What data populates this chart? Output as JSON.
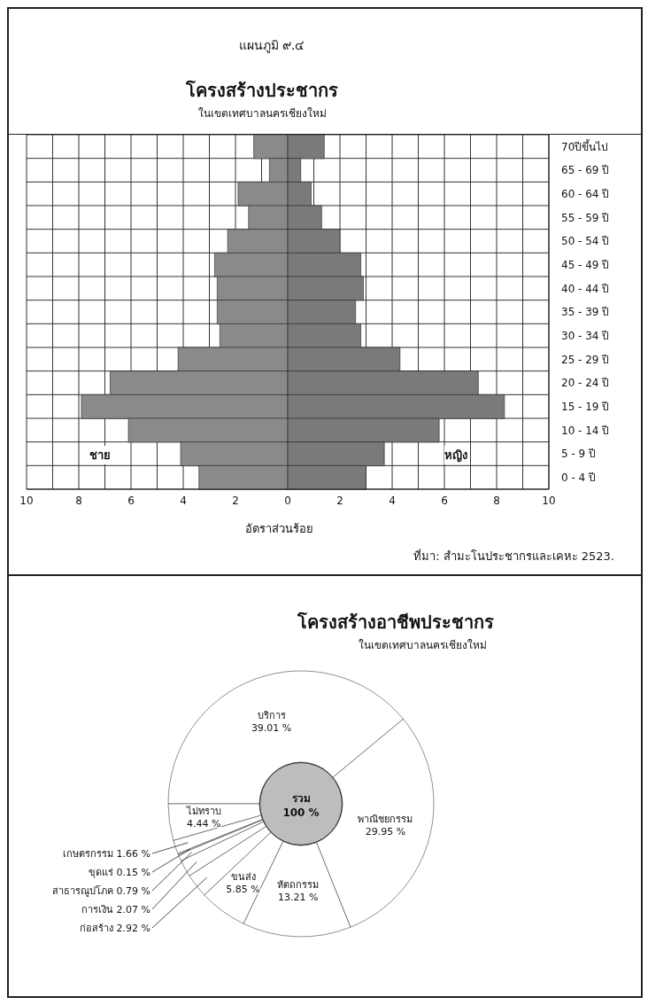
{
  "chart_data": [
    {
      "type": "bar",
      "orientation": "horizontal",
      "stacked": true,
      "title": "โครงสร้างประชากร",
      "subtitle": "ในเขตเทศบาลนครเชียงใหม่",
      "xlabel": "อัตราส่วนร้อย",
      "annotations": [
        "แผนภูมิ ๙.๔",
        "ที่มา: สำมะโนประชากรและเคหะ 2523."
      ],
      "categories": [
        "70ปีขึ้นไป",
        "65 - 69 ปี",
        "60 - 64 ปี",
        "55 - 59 ปี",
        "50 - 54 ปี",
        "45 - 49 ปี",
        "40 - 44 ปี",
        "35 - 39 ปี",
        "30 - 34 ปี",
        "25 - 29 ปี",
        "20 - 24 ปี",
        "15 - 19 ปี",
        "10 - 14 ปี",
        "5 - 9 ปี",
        "0 - 4 ปี"
      ],
      "series": [
        {
          "name": "ชาย",
          "color": "#8a8a8a",
          "values": [
            -1.3,
            -0.7,
            -1.9,
            -1.5,
            -2.3,
            -2.8,
            -2.7,
            -2.7,
            -2.6,
            -4.2,
            -6.8,
            -7.9,
            -6.1,
            -4.1,
            -3.4
          ]
        },
        {
          "name": "หญิง",
          "color": "#7a7a7a",
          "values": [
            1.4,
            0.5,
            0.9,
            1.3,
            2.0,
            2.8,
            2.9,
            2.6,
            2.8,
            4.3,
            7.3,
            8.3,
            5.8,
            3.7,
            3.0
          ]
        }
      ],
      "xlim": [
        -10,
        10
      ],
      "xticks": [
        {
          "value": -10,
          "label": "10"
        },
        {
          "value": -9,
          "label": null
        },
        {
          "value": -8,
          "label": "8"
        },
        {
          "value": -7,
          "label": null
        },
        {
          "value": -6,
          "label": "6"
        },
        {
          "value": -5,
          "label": null
        },
        {
          "value": -4,
          "label": "4"
        },
        {
          "value": -3,
          "label": null
        },
        {
          "value": -2,
          "label": "2"
        },
        {
          "value": -1,
          "label": null
        },
        0,
        {
          "value": 1,
          "label": null
        },
        2,
        {
          "value": 3,
          "label": null
        },
        4,
        {
          "value": 5,
          "label": null
        },
        6,
        {
          "value": 7,
          "label": null
        },
        8,
        {
          "value": 9,
          "label": null
        },
        10
      ],
      "grid": true
    },
    {
      "type": "donut",
      "title": "โครงสร้างอาชีพประชากร",
      "subtitle": "ในเขตเทศบาลนครเชียงใหม่",
      "annotations": [
        "รวม 100 %"
      ],
      "categories": [
        "บริการ",
        "พาณิชยกรรม",
        "หัตถกรรม",
        "ขนส่ง",
        "ก่อสร้าง",
        "การเงิน",
        "สาธารณูปโภค",
        "ขุดแร่",
        "เกษตรกรรม",
        "ไม่ทราบ"
      ],
      "values": [
        39.01,
        29.95,
        13.21,
        5.85,
        2.92,
        2.07,
        0.79,
        0.15,
        1.66,
        4.44
      ],
      "value_labels": [
        "39.01 %",
        "29.95 %",
        "13.21 %",
        "5.85 %",
        "2.92 %",
        "2.07 %",
        "0.79 %",
        "0.15 %",
        "1.66 %",
        "4.44 %"
      ],
      "colors": [
        "#ffffff",
        "#ffffff",
        "#ffffff",
        "#ffffff",
        "#ffffff",
        "#ffffff",
        "#ffffff",
        "#ffffff",
        "#ffffff",
        "#ffffff"
      ]
    }
  ]
}
